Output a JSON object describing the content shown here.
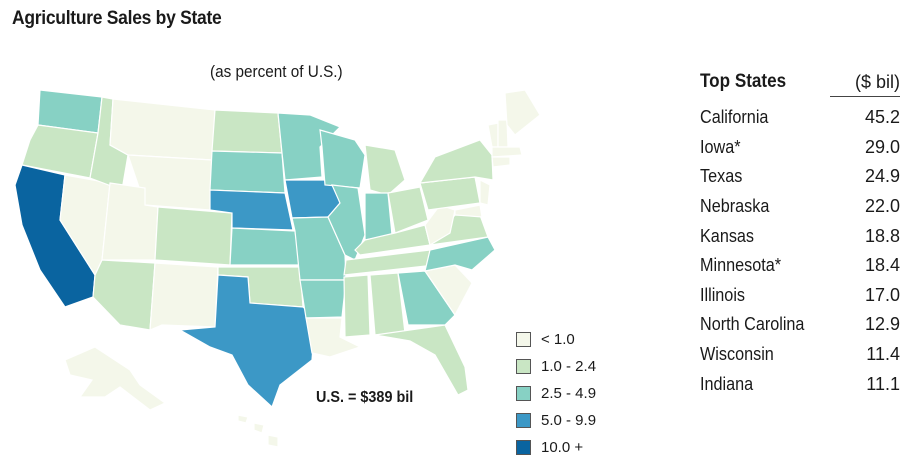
{
  "title": "Agriculture Sales by State",
  "subtitle": "(as percent of U.S.)",
  "total_label": "U.S. = $389 bil",
  "legend": [
    {
      "label": "< 1.0",
      "color": "#f4f7ea"
    },
    {
      "label": "1.0 - 2.4",
      "color": "#c9e6c4"
    },
    {
      "label": "2.5 - 4.9",
      "color": "#87d1c4"
    },
    {
      "label": "5.0 - 9.9",
      "color": "#3c98c6"
    },
    {
      "label": "10.0 +",
      "color": "#0a64a0"
    }
  ],
  "table": {
    "header_left": "Top States",
    "header_right": "($ bil)",
    "rows": [
      {
        "state": "California",
        "value": "45.2"
      },
      {
        "state": "Iowa*",
        "value": "29.0"
      },
      {
        "state": "Texas",
        "value": "24.9"
      },
      {
        "state": "Nebraska",
        "value": "22.0"
      },
      {
        "state": "Kansas",
        "value": "18.8"
      },
      {
        "state": "Minnesota*",
        "value": "18.4"
      },
      {
        "state": "Illinois",
        "value": "17.0"
      },
      {
        "state": "North Carolina",
        "value": "12.9"
      },
      {
        "state": "Wisconsin",
        "value": "11.4"
      },
      {
        "state": "Indiana",
        "value": "11.1"
      }
    ]
  }
}
